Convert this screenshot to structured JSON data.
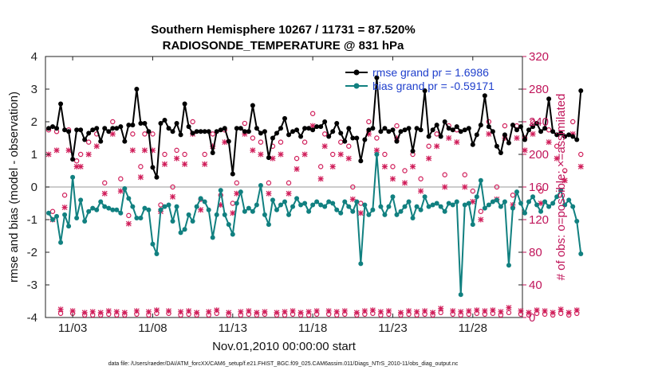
{
  "chart_data": {
    "type": "line",
    "title": "Southern Hemisphere 10267 / 11731 = 87.520%",
    "subtitle": "RADIOSONDE_TEMPERATURE @ 831 hPa",
    "xlabel": "Nov.01,2010 00:00:00 start",
    "ylabel": "rmse and bias (model - observation)",
    "ylabel_right": "# of obs: o=possible; ×=assimilated",
    "footer": "data file: /Users/raeder/DAI/ATM_forcXX/CAM6_setup/f.e21.FHIST_BGC.f09_025.CAM6assim.011/Diags_NTrS_2010-11/obs_diag_output.nc",
    "xlim": [
      1.3,
      31.1
    ],
    "ylim": [
      -4,
      4
    ],
    "ylim_right": [
      0,
      320
    ],
    "x_ticks": [
      3,
      8,
      13,
      18,
      23,
      28
    ],
    "x_tick_labels": [
      "11/03",
      "11/08",
      "11/13",
      "11/18",
      "11/23",
      "11/28"
    ],
    "y_ticks": [
      -4,
      -3,
      -2,
      -1,
      0,
      1,
      2,
      3,
      4
    ],
    "y_tick_labels": [
      "-4",
      "-3",
      "-2",
      "-1",
      "0",
      "1",
      "2",
      "3",
      "4"
    ],
    "y_right_ticks": [
      0,
      40,
      80,
      120,
      160,
      200,
      240,
      280,
      320
    ],
    "y_right_tick_labels": [
      "0",
      "40",
      "80",
      "120",
      "160",
      "200",
      "240",
      "280",
      "320"
    ],
    "grid": false,
    "legend_position": "top-right",
    "colors": {
      "rmse": "#000000",
      "bias": "#118080",
      "obs": "#d01e5a",
      "zero_line": "#bbbbbb"
    },
    "series": [
      {
        "name": "rmse grand pr = 1.6986",
        "axis": "left",
        "values": [
          1.8,
          1.85,
          1.8,
          2.55,
          1.75,
          1.7,
          0.85,
          1.75,
          1.75,
          1.45,
          1.65,
          1.75,
          1.8,
          1.4,
          1.8,
          1.7,
          1.8,
          1.8,
          1.85,
          1.4,
          1.9,
          1.9,
          3.0,
          1.95,
          1.95,
          1.7,
          0.6,
          0.3,
          1.95,
          2.05,
          1.8,
          1.7,
          1.95,
          1.6,
          2.55,
          1.85,
          1.65,
          1.7,
          1.7,
          1.7,
          1.7,
          1.05,
          1.7,
          1.75,
          1.8,
          1.4,
          0.4,
          1.8,
          1.8,
          1.7,
          1.7,
          2.5,
          1.8,
          1.65,
          1.7,
          0.9,
          1.5,
          1.65,
          1.8,
          2.1,
          1.6,
          1.7,
          1.75,
          1.55,
          1.8,
          1.8,
          1.75,
          1.85,
          1.85,
          2.0,
          1.55,
          1.7,
          1.95,
          1.65,
          1.4,
          1.8,
          1.5,
          1.5,
          0.8,
          1.45,
          1.75,
          1.8,
          3.35,
          1.7,
          1.8,
          1.7,
          1.75,
          1.4,
          1.7,
          1.75,
          1.8,
          1.1,
          1.8,
          1.75,
          2.95,
          1.55,
          1.75,
          1.9,
          1.55,
          2.0,
          1.8,
          1.75,
          1.85,
          1.7,
          1.75,
          1.8,
          1.3,
          1.6,
          1.9,
          2.8,
          1.85,
          1.7,
          1.25,
          1.05,
          1.6,
          1.35,
          1.9,
          1.75,
          1.85,
          1.45,
          1.75,
          1.85,
          1.95,
          1.7,
          1.8,
          2.7,
          1.7,
          1.6,
          1.65,
          1.55,
          1.6,
          1.55,
          1.45,
          2.95
        ],
        "x_start": 1.5,
        "x_step": 0.25
      },
      {
        "name": "bias grand pr = -0.59171",
        "axis": "left",
        "values": [
          -0.8,
          -1.0,
          -0.9,
          -1.7,
          -0.85,
          -1.2,
          0.3,
          -0.95,
          -0.4,
          -1.05,
          -0.75,
          -0.65,
          -0.7,
          -0.45,
          -0.6,
          -0.65,
          -0.7,
          -0.7,
          -0.8,
          -0.05,
          -0.35,
          -0.6,
          -0.95,
          -0.95,
          -0.65,
          -0.7,
          -1.75,
          -2.05,
          -0.7,
          -0.6,
          -0.55,
          -1.05,
          -0.6,
          -1.4,
          -1.3,
          -0.85,
          -1.05,
          -0.6,
          -0.35,
          -0.45,
          -0.7,
          -1.55,
          -0.85,
          -0.1,
          -0.85,
          -1.15,
          -1.45,
          -0.5,
          -0.15,
          -0.75,
          -0.65,
          -0.75,
          -0.55,
          0.05,
          -0.85,
          -1.15,
          -0.4,
          -0.7,
          -0.55,
          -0.45,
          -0.85,
          -0.6,
          -0.35,
          -0.55,
          -0.5,
          -0.75,
          -0.55,
          -0.45,
          -0.55,
          -0.6,
          -0.45,
          -0.5,
          -0.7,
          -0.8,
          -0.45,
          -0.6,
          -0.75,
          -0.45,
          -2.35,
          -0.55,
          -0.85,
          -0.7,
          1.0,
          -0.6,
          -0.85,
          -0.6,
          -0.3,
          -0.85,
          -0.75,
          -0.6,
          -0.45,
          -0.95,
          -0.6,
          -0.7,
          -0.3,
          -0.6,
          -0.55,
          -0.5,
          -0.6,
          -0.75,
          -0.5,
          -0.55,
          -0.45,
          -3.3,
          -0.55,
          -0.5,
          -1.15,
          -0.3,
          0.2,
          -0.65,
          -0.55,
          -0.45,
          -0.4,
          -0.6,
          -0.45,
          -2.4,
          -0.65,
          -0.15,
          -0.5,
          -0.8,
          -0.45,
          -0.3,
          -0.55,
          -0.75,
          -0.45,
          -0.6,
          -0.5,
          -0.3,
          -0.1,
          -0.55,
          -0.4,
          -0.6,
          -1.05,
          -2.05
        ],
        "x_start": 1.5,
        "x_step": 0.25
      }
    ],
    "obs_counts": {
      "note": "per-analysis counts on right axis; o = possible, x = assimilated",
      "x_start": 1.5,
      "x_step": 0.25,
      "possible": [
        230,
        130,
        228,
        5,
        150,
        230,
        5,
        192,
        200,
        3,
        215,
        3,
        225,
        3,
        165,
        4,
        240,
        3,
        170,
        3,
        125,
        225,
        4,
        185,
        225,
        3,
        225,
        5,
        138,
        200,
        5,
        160,
        205,
        3,
        200,
        4,
        240,
        3,
        145,
        200,
        3,
        225,
        5,
        150,
        230,
        3,
        140,
        165,
        3,
        238,
        4,
        220,
        3,
        215,
        4,
        165,
        210,
        3,
        215,
        3,
        165,
        4,
        195,
        3,
        215,
        3,
        250,
        4,
        185,
        225,
        4,
        200,
        3,
        215,
        4,
        210,
        160,
        3,
        140,
        4,
        240,
        5,
        220,
        3,
        200,
        4,
        185,
        235,
        3,
        180,
        4,
        200,
        3,
        170,
        4,
        210,
        3,
        225,
        6,
        175,
        235,
        4,
        230,
        3,
        175,
        4,
        155,
        5,
        130,
        4,
        240,
        5,
        160,
        3,
        235,
        6,
        150,
        235,
        4,
        220,
        3,
        240,
        5,
        155,
        4,
        230,
        3,
        210,
        5,
        180,
        3,
        240,
        5,
        200
      ],
      "assimilated": [
        200,
        120,
        205,
        10,
        135,
        205,
        8,
        185,
        185,
        6,
        200,
        7,
        210,
        6,
        152,
        8,
        225,
        7,
        155,
        6,
        115,
        205,
        8,
        172,
        205,
        7,
        205,
        9,
        130,
        188,
        8,
        148,
        195,
        7,
        188,
        8,
        225,
        6,
        132,
        188,
        7,
        210,
        9,
        138,
        215,
        6,
        128,
        152,
        7,
        225,
        8,
        205,
        6,
        200,
        7,
        152,
        195,
        6,
        200,
        7,
        152,
        8,
        182,
        6,
        200,
        7,
        235,
        8,
        170,
        210,
        8,
        185,
        7,
        200,
        8,
        195,
        145,
        6,
        128,
        8,
        225,
        9,
        205,
        7,
        185,
        8,
        170,
        220,
        6,
        165,
        8,
        185,
        7,
        155,
        8,
        195,
        6,
        210,
        11,
        160,
        220,
        8,
        215,
        7,
        160,
        8,
        142,
        9,
        120,
        8,
        225,
        9,
        145,
        7,
        220,
        12,
        138,
        220,
        8,
        205,
        6,
        225,
        9,
        140,
        8,
        215,
        6,
        195,
        10,
        168,
        6,
        225,
        9,
        185
      ]
    }
  }
}
